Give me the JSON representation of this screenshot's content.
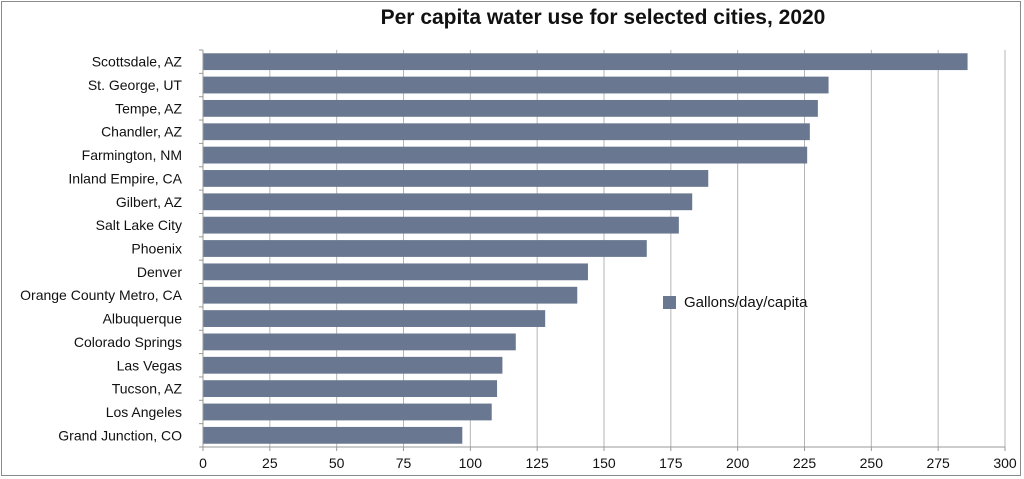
{
  "chart_data": {
    "type": "bar",
    "orientation": "horizontal",
    "title": "Per capita water use for selected cities, 2020",
    "xlabel": "",
    "ylabel": "",
    "xlim": [
      0,
      300
    ],
    "xticks": [
      0,
      25,
      50,
      75,
      100,
      125,
      150,
      175,
      200,
      225,
      250,
      275,
      300
    ],
    "grid": "vertical",
    "legend_position": "right",
    "bar_color": "#6a7790",
    "categories": [
      "Scottsdale, AZ",
      "St. George, UT",
      "Tempe, AZ",
      "Chandler, AZ",
      "Farmington, NM",
      "Inland Empire, CA",
      "Gilbert, AZ",
      "Salt Lake City",
      "Phoenix",
      "Denver",
      "Orange County Metro, CA",
      "Albuquerque",
      "Colorado Springs",
      "Las Vegas",
      "Tucson, AZ",
      "Los Angeles",
      "Grand Junction, CO"
    ],
    "series": [
      {
        "name": "Gallons/day/capita",
        "values": [
          286,
          234,
          230,
          227,
          226,
          189,
          183,
          178,
          166,
          144,
          140,
          128,
          117,
          112,
          110,
          108,
          97
        ]
      }
    ]
  }
}
